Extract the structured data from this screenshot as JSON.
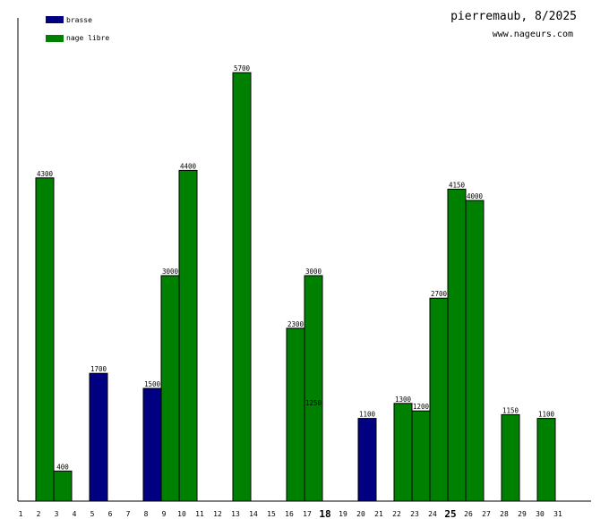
{
  "header": {
    "title": "pierremaub, 8/2025",
    "site": "www.nageurs.com"
  },
  "colors": {
    "brasse": "#000080",
    "nage_libre": "#008000",
    "bar_stroke": "#000000",
    "axis": "#000000"
  },
  "chart_data": {
    "type": "bar",
    "title": "pierremaub, 8/2025",
    "xlabel": "",
    "ylabel": "",
    "ylim": [
      0,
      6200
    ],
    "legend": "top-left",
    "grid": false,
    "categories": [
      "1",
      "2",
      "3",
      "4",
      "5",
      "6",
      "7",
      "8",
      "9",
      "10",
      "11",
      "12",
      "13",
      "14",
      "15",
      "16",
      "17",
      "18",
      "19",
      "20",
      "21",
      "22",
      "23",
      "24",
      "25",
      "26",
      "27",
      "28",
      "29",
      "30",
      "31"
    ],
    "highlighted_categories": [
      "18",
      "25"
    ],
    "series": [
      {
        "name": "brasse",
        "color": "#000080",
        "values": [
          null,
          null,
          null,
          null,
          1700,
          null,
          null,
          1500,
          null,
          null,
          null,
          null,
          null,
          null,
          null,
          null,
          1250,
          null,
          null,
          1100,
          null,
          null,
          null,
          null,
          null,
          null,
          null,
          null,
          null,
          null,
          null
        ]
      },
      {
        "name": "nage libre",
        "color": "#008000",
        "values": [
          null,
          4300,
          400,
          null,
          null,
          null,
          null,
          null,
          3000,
          4400,
          null,
          null,
          5700,
          null,
          null,
          2300,
          3000,
          null,
          null,
          null,
          null,
          1300,
          1200,
          2700,
          4150,
          4000,
          null,
          1150,
          null,
          1100,
          null
        ]
      }
    ]
  }
}
